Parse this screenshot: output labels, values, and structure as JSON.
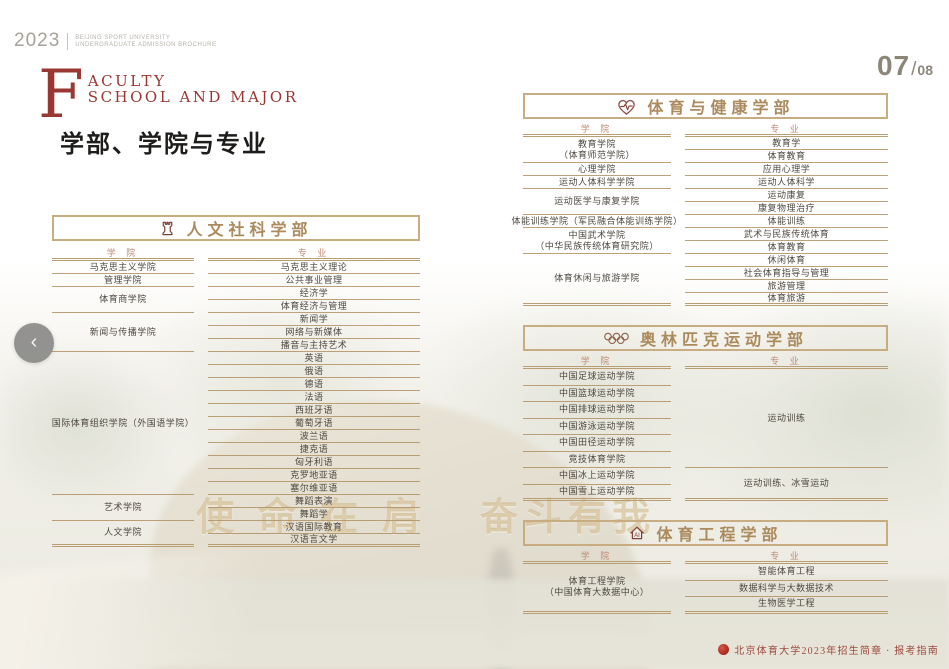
{
  "meta": {
    "year": "2023",
    "brand_line1": "BEIJING SPORT UNIVERSITY",
    "brand_line2": "UNDERGRADUATE ADMISSION BROCHURE",
    "page_current": "07",
    "page_slash": "/",
    "page_total": "08"
  },
  "title": {
    "en_initial": "F",
    "en_line1": "ACULTY",
    "en_line2": "SCHOOL  AND  MAJOR",
    "zh": "学部、学院与专业"
  },
  "columns": {
    "school": "学 院",
    "major": "专 业"
  },
  "faculties": [
    {
      "id": "humanities",
      "icon": "rook-icon",
      "title": "人文社科学部",
      "schools": [
        {
          "lines": [
            "马克思主义学院"
          ],
          "span": 1
        },
        {
          "lines": [
            "管理学院"
          ],
          "span": 1
        },
        {
          "lines": [
            "体育商学院"
          ],
          "span": 2
        },
        {
          "lines": [
            "新闻与传播学院"
          ],
          "span": 3
        },
        {
          "lines": [
            "国际体育组织学院（外国语学院）"
          ],
          "span": 11
        },
        {
          "lines": [
            "艺术学院"
          ],
          "span": 2
        },
        {
          "lines": [
            "人文学院"
          ],
          "span": 2
        }
      ],
      "majors": [
        "马克思主义理论",
        "公共事业管理",
        "经济学",
        "体育经济与管理",
        "新闻学",
        "网络与新媒体",
        "播音与主持艺术",
        "英语",
        "俄语",
        "德语",
        "法语",
        "西班牙语",
        "葡萄牙语",
        "波兰语",
        "捷克语",
        "匈牙利语",
        "克罗地亚语",
        "塞尔维亚语",
        "舞蹈表演",
        "舞蹈学",
        "汉语国际教育",
        "汉语言文学"
      ]
    },
    {
      "id": "health",
      "icon": "heart-pulse-icon",
      "title": "体育与健康学部",
      "schools": [
        {
          "lines": [
            "教育学院",
            "（体育师范学院）"
          ],
          "span": 2
        },
        {
          "lines": [
            "心理学院"
          ],
          "span": 1
        },
        {
          "lines": [
            "运动人体科学学院"
          ],
          "span": 1
        },
        {
          "lines": [
            "运动医学与康复学院"
          ],
          "span": 2
        },
        {
          "lines": [
            "体能训练学院（军民融合体能训练学院）"
          ],
          "span": 1
        },
        {
          "lines": [
            "中国武术学院",
            "（中华民族传统体育研究院）"
          ],
          "span": 2
        },
        {
          "lines": [
            "体育休闲与旅游学院"
          ],
          "span": 4
        }
      ],
      "majors": [
        "教育学",
        "体育教育",
        "应用心理学",
        "运动人体科学",
        "运动康复",
        "康复物理治疗",
        "体能训练",
        "武术与民族传统体育",
        "体育教育",
        "休闲体育",
        "社会体育指导与管理",
        "旅游管理",
        "体育旅游"
      ]
    },
    {
      "id": "olympic",
      "icon": "olympic-rings-icon",
      "title": "奥林匹克运动学部",
      "schools": [
        "中国足球运动学院",
        "中国篮球运动学院",
        "中国排球运动学院",
        "中国游泳运动学院",
        "中国田径运动学院",
        "竞技体育学院",
        "中国冰上运动学院",
        "中国雪上运动学院"
      ],
      "majors": [
        {
          "lines": [
            "运动训练"
          ],
          "span": 6
        },
        {
          "lines": [
            "运动训练、冰雪运动"
          ],
          "span": 2
        }
      ]
    },
    {
      "id": "engineering",
      "icon": "ai-house-icon",
      "title": "体育工程学部",
      "schools": [
        {
          "lines": [
            "体育工程学院",
            "（中国体育大数据中心）"
          ],
          "span": 3
        }
      ],
      "majors": [
        "智能体育工程",
        "数据科学与大数据技术",
        "生物医学工程"
      ]
    }
  ],
  "background": {
    "inscription_part1": "使命在肩",
    "inscription_part2": "奋斗有我"
  },
  "footer": {
    "text": "北京体育大学2023年招生简章 · 报考指南"
  },
  "nav": {
    "prev_label": "‹"
  }
}
